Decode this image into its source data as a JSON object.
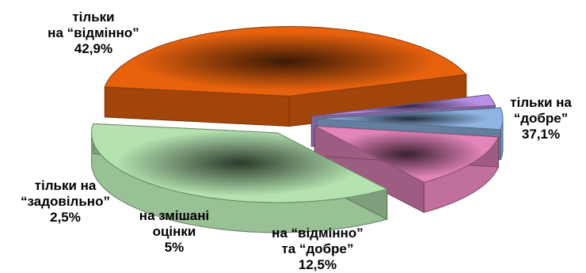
{
  "chart_data": {
    "type": "pie",
    "style": "3d-exploded",
    "slices": [
      {
        "label_lines": [
          "тільки",
          "на “відмінно”"
        ],
        "value_label": "42,9%",
        "value": 42.9,
        "color": "#e8620e"
      },
      {
        "label_lines": [
          "тільки на",
          "“добре”"
        ],
        "value_label": "37,1%",
        "value": 37.1,
        "color": "#b4e3b0"
      },
      {
        "label_lines": [
          "на “відмінно”",
          "та “добре”"
        ],
        "value_label": "12,5%",
        "value": 12.5,
        "color": "#e384ba"
      },
      {
        "label_lines": [
          "на змішані",
          "оцінки"
        ],
        "value_label": "5%",
        "value": 5,
        "color": "#8eb4e3"
      },
      {
        "label_lines": [
          "тільки на",
          "“задовільно”"
        ],
        "value_label": "2,5%",
        "value": 2.5,
        "color": "#b890e6"
      }
    ]
  }
}
